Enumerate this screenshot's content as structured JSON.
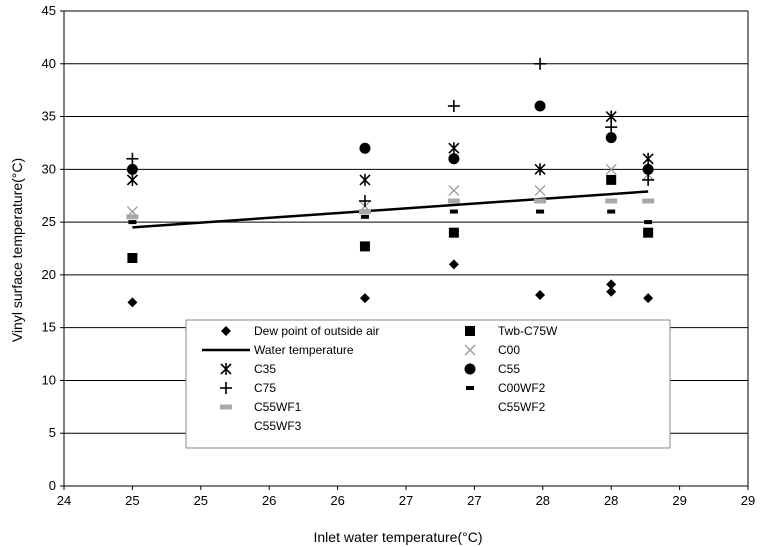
{
  "chart_data": {
    "type": "scatter",
    "xlabel": "Inlet water temperature(°C)",
    "ylabel": "Vinyl surface temperature(°C)",
    "xlim": [
      24,
      29
    ],
    "ylim": [
      0,
      45
    ],
    "x_ticks": [
      {
        "value": 24,
        "label": "24"
      },
      {
        "value": 24.5,
        "label": "25"
      },
      {
        "value": 25,
        "label": "25"
      },
      {
        "value": 25.5,
        "label": "26"
      },
      {
        "value": 26,
        "label": "26"
      },
      {
        "value": 26.5,
        "label": "27"
      },
      {
        "value": 27,
        "label": "27"
      },
      {
        "value": 27.5,
        "label": "28"
      },
      {
        "value": 28,
        "label": "28"
      },
      {
        "value": 28.5,
        "label": "29"
      },
      {
        "value": 29,
        "label": "29"
      }
    ],
    "y_ticks": [
      0,
      5,
      10,
      15,
      20,
      25,
      30,
      35,
      40,
      45
    ],
    "grid": "horizontal",
    "legend_position": "bottom-center inside",
    "series": [
      {
        "name": "Dew point of outside air",
        "marker": "diamond",
        "points": [
          [
            24.5,
            17.4
          ],
          [
            26.2,
            17.8
          ],
          [
            26.85,
            21.0
          ],
          [
            27.48,
            18.1
          ],
          [
            28.0,
            19.1
          ],
          [
            28.0,
            18.4
          ],
          [
            28.27,
            17.8
          ]
        ]
      },
      {
        "name": "Twb-C75W",
        "marker": "square",
        "points": [
          [
            24.5,
            21.6
          ],
          [
            26.2,
            22.7
          ],
          [
            26.85,
            24.0
          ],
          [
            28.0,
            29.0
          ],
          [
            28.27,
            24.0
          ]
        ]
      },
      {
        "name": "Water temperature",
        "marker": "line",
        "points": [
          [
            24.5,
            24.5
          ],
          [
            28.27,
            27.9
          ]
        ]
      },
      {
        "name": "C00",
        "marker": "x-light",
        "points": [
          [
            24.5,
            26.0
          ],
          [
            26.2,
            26.5
          ],
          [
            26.85,
            28.0
          ],
          [
            27.48,
            28.0
          ],
          [
            28.0,
            30.0
          ],
          [
            28.27,
            29.5
          ]
        ]
      },
      {
        "name": "C35",
        "marker": "asterisk",
        "points": [
          [
            24.5,
            29.0
          ],
          [
            26.2,
            29.0
          ],
          [
            26.85,
            32.0
          ],
          [
            27.48,
            30.0
          ],
          [
            28.0,
            35.0
          ],
          [
            28.27,
            31.0
          ]
        ]
      },
      {
        "name": "C55",
        "marker": "circle",
        "points": [
          [
            24.5,
            30.0
          ],
          [
            26.2,
            32.0
          ],
          [
            26.85,
            31.0
          ],
          [
            27.48,
            36.0
          ],
          [
            28.0,
            33.0
          ],
          [
            28.27,
            30.0
          ]
        ]
      },
      {
        "name": "C75",
        "marker": "plus",
        "points": [
          [
            24.5,
            31.0
          ],
          [
            26.2,
            27.0
          ],
          [
            26.85,
            36.0
          ],
          [
            27.48,
            40.0
          ],
          [
            28.0,
            34.0
          ],
          [
            28.27,
            29.0
          ]
        ]
      },
      {
        "name": "C00WF2",
        "marker": "dash",
        "points": [
          [
            24.5,
            25.0
          ],
          [
            26.2,
            25.5
          ],
          [
            26.85,
            26.0
          ],
          [
            27.48,
            26.0
          ],
          [
            28.0,
            26.0
          ],
          [
            28.27,
            25.0
          ]
        ]
      },
      {
        "name": "C55WF1",
        "marker": "bar-light",
        "points": [
          [
            24.5,
            25.5
          ],
          [
            26.2,
            26.0
          ],
          [
            26.85,
            27.0
          ],
          [
            27.48,
            27.0
          ],
          [
            28.0,
            27.0
          ],
          [
            28.27,
            27.0
          ]
        ]
      },
      {
        "name": "C55WF2",
        "marker": "none",
        "points": []
      },
      {
        "name": "C55WF3",
        "marker": "none",
        "points": []
      }
    ]
  }
}
